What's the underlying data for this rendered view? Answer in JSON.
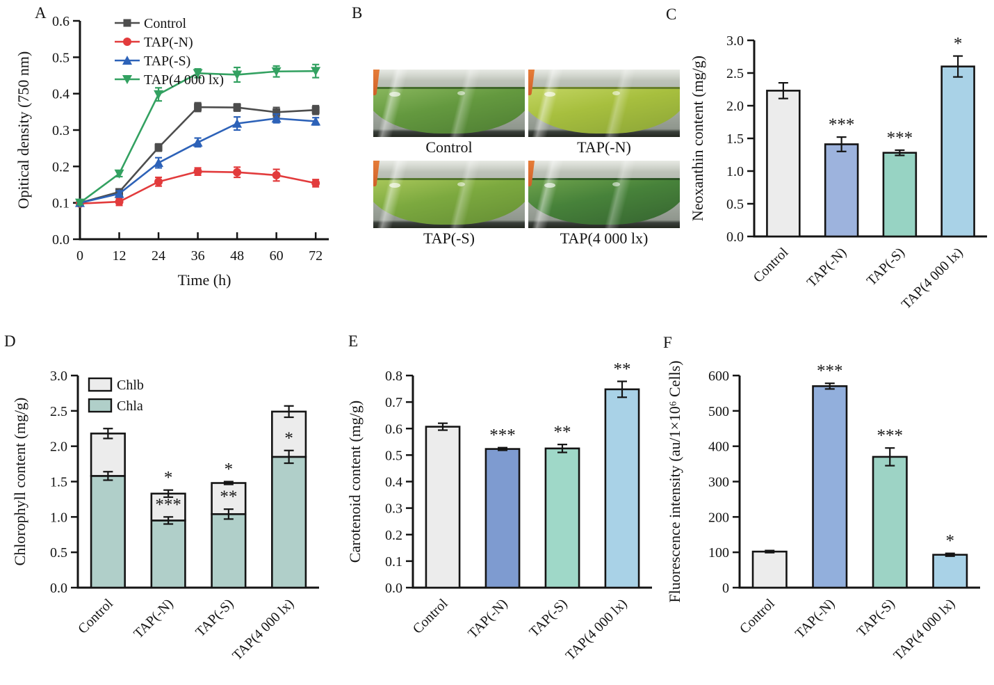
{
  "panels": {
    "a": "A",
    "b": "B",
    "c": "C",
    "d": "D",
    "e": "E",
    "f": "F"
  },
  "photos": {
    "items": [
      {
        "label": "Control",
        "liquid_light": "#8ab75e",
        "liquid": "#64993f",
        "liquid_dark": "#4e7d33"
      },
      {
        "label": "TAP(-N)",
        "liquid_light": "#c3d563",
        "liquid": "#a7bf3e",
        "liquid_dark": "#8ba437"
      },
      {
        "label": "TAP(-S)",
        "liquid_light": "#a9c75a",
        "liquid": "#7ca93f",
        "liquid_dark": "#648d34"
      },
      {
        "label": "TAP(4 000 lx)",
        "liquid_light": "#6fa34c",
        "liquid": "#47823a",
        "liquid_dark": "#356330"
      }
    ]
  },
  "chart_data": [
    {
      "panel": "A",
      "type": "line",
      "title": "",
      "xlabel": "Time (h)",
      "ylabel": "Opitical density (750 nm)",
      "x": [
        0,
        12,
        24,
        36,
        48,
        60,
        72
      ],
      "xtick_labels": [
        "0",
        "12",
        "24",
        "36",
        "48",
        "60",
        "72"
      ],
      "xlim": [
        0,
        76
      ],
      "ylim": [
        0,
        0.6
      ],
      "yticks": [
        0,
        0.1,
        0.2,
        0.3,
        0.4,
        0.5,
        0.6
      ],
      "ytick_labels": [
        "0.0",
        "0.1",
        "0.2",
        "0.3",
        "0.4",
        "0.5",
        "0.6"
      ],
      "grid": false,
      "legend_position": "top-left",
      "series": [
        {
          "name": "Control",
          "marker": "square",
          "color": "#4d4d4d",
          "values": [
            0.1,
            0.13,
            0.252,
            0.363,
            0.362,
            0.349,
            0.355
          ],
          "errors": [
            0.005,
            0.008,
            0.01,
            0.012,
            0.01,
            0.013,
            0.012
          ]
        },
        {
          "name": "TAP(-N)",
          "marker": "circle",
          "color": "#e23b3c",
          "values": [
            0.098,
            0.103,
            0.158,
            0.186,
            0.184,
            0.176,
            0.154
          ],
          "errors": [
            0.005,
            0.01,
            0.012,
            0.01,
            0.014,
            0.016,
            0.01
          ]
        },
        {
          "name": "TAP(-S)",
          "marker": "triangle-up",
          "color": "#2d62b8",
          "values": [
            0.1,
            0.125,
            0.21,
            0.266,
            0.318,
            0.332,
            0.324
          ],
          "errors": [
            0.005,
            0.008,
            0.014,
            0.012,
            0.018,
            0.012,
            0.01
          ]
        },
        {
          "name": "TAP(4 000 lx)",
          "marker": "triangle-down",
          "color": "#33a161",
          "values": [
            0.1,
            0.18,
            0.398,
            0.456,
            0.452,
            0.461,
            0.462
          ],
          "errors": [
            0.005,
            0.008,
            0.018,
            0.012,
            0.02,
            0.015,
            0.018
          ]
        }
      ]
    },
    {
      "panel": "C",
      "type": "bar",
      "ylabel": "Neoxanthin content (mg/g)",
      "categories": [
        "Control",
        "TAP(-N)",
        "TAP(-S)",
        "TAP(4 000 lx)"
      ],
      "values": [
        2.23,
        1.41,
        1.28,
        2.6
      ],
      "errors": [
        0.12,
        0.11,
        0.04,
        0.16
      ],
      "significance": [
        "",
        "***",
        "***",
        "*"
      ],
      "bar_colors": [
        "#ececec",
        "#9db3dd",
        "#97d3c3",
        "#a9d2e7"
      ],
      "ylim": [
        0,
        3
      ],
      "yticks": [
        0,
        0.5,
        1,
        1.5,
        2,
        2.5,
        3
      ],
      "ytick_labels": [
        "0.0",
        "0.5",
        "1.0",
        "1.5",
        "2.0",
        "2.5",
        "3.0"
      ]
    },
    {
      "panel": "D",
      "type": "stacked-bar",
      "ylabel": "Chlorophyll content (mg/g)",
      "categories": [
        "Control",
        "TAP(-N)",
        "TAP(-S)",
        "TAP(4 000 lx)"
      ],
      "series": [
        {
          "name": "Chla",
          "color": "#b0cfc9",
          "values": [
            1.58,
            0.95,
            1.04,
            1.85
          ],
          "errors": [
            0.06,
            0.05,
            0.07,
            0.09
          ],
          "significance": [
            "",
            "***",
            "**",
            "*"
          ]
        },
        {
          "name": "Chlb",
          "color": "#ececec",
          "values": [
            0.6,
            0.38,
            0.44,
            0.64
          ],
          "errors": [
            0.07,
            0.05,
            0.02,
            0.08
          ],
          "significance": [
            "",
            "*",
            "*",
            ""
          ]
        }
      ],
      "legend": [
        "Chlb",
        "Chla"
      ],
      "legend_position": "top-left",
      "ylim": [
        0,
        3
      ],
      "yticks": [
        0,
        0.5,
        1,
        1.5,
        2,
        2.5,
        3
      ],
      "ytick_labels": [
        "0.0",
        "0.5",
        "1.0",
        "1.5",
        "2.0",
        "2.5",
        "3.0"
      ]
    },
    {
      "panel": "E",
      "type": "bar",
      "ylabel": "Carotenoid content (mg/g)",
      "categories": [
        "Control",
        "TAP(-N)",
        "TAP(-S)",
        "TAP(4 000 lx)"
      ],
      "values": [
        0.607,
        0.523,
        0.525,
        0.748
      ],
      "errors": [
        0.013,
        0.005,
        0.015,
        0.03
      ],
      "significance": [
        "",
        "***",
        "**",
        "**"
      ],
      "bar_colors": [
        "#ececec",
        "#7e9bd0",
        "#9fd8c8",
        "#a9d2e7"
      ],
      "ylim": [
        0,
        0.8
      ],
      "yticks": [
        0,
        0.1,
        0.2,
        0.3,
        0.4,
        0.5,
        0.6,
        0.7,
        0.8
      ],
      "ytick_labels": [
        "0.0",
        "0.1",
        "0.2",
        "0.3",
        "0.4",
        "0.5",
        "0.6",
        "0.7",
        "0.8"
      ]
    },
    {
      "panel": "F",
      "type": "bar",
      "ylabel": "Fluorescence intensity (au/1×10⁶ Cells)",
      "categories": [
        "Control",
        "TAP(-N)",
        "TAP(-S)",
        "TAP(4 000 lx)"
      ],
      "values": [
        102,
        570,
        370,
        93
      ],
      "errors": [
        3,
        8,
        25,
        4
      ],
      "significance": [
        "",
        "***",
        "***",
        "*"
      ],
      "bar_colors": [
        "#ececec",
        "#92afdc",
        "#9dd3c5",
        "#a9d2e7"
      ],
      "ylim": [
        0,
        600
      ],
      "yticks": [
        0,
        100,
        200,
        300,
        400,
        500,
        600
      ],
      "ytick_labels": [
        "0",
        "100",
        "200",
        "300",
        "400",
        "500",
        "600"
      ]
    }
  ]
}
